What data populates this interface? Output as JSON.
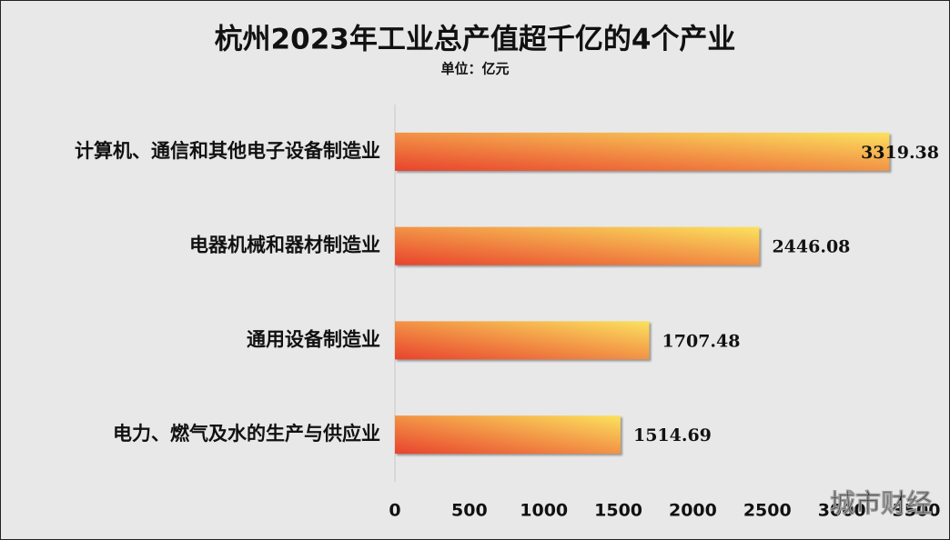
{
  "chart_data": {
    "type": "barh",
    "title": "杭州2023年工业总产值超千亿的4个产业",
    "subtitle": "单位：亿元",
    "categories": [
      "计算机、通信和其他电子设备制造业",
      "电器机械和器材制造业",
      "通用设备制造业",
      "电力、燃气及水的生产与供应业"
    ],
    "values": [
      3319.38,
      2446.08,
      1707.48,
      1514.69
    ],
    "gradient": [
      "#e8432d",
      "#fbe25e"
    ],
    "xlim": [
      0,
      3500
    ],
    "xticks": [
      0,
      500,
      1000,
      1500,
      2000,
      2500,
      3000,
      3500
    ],
    "watermark": "城市财经"
  }
}
